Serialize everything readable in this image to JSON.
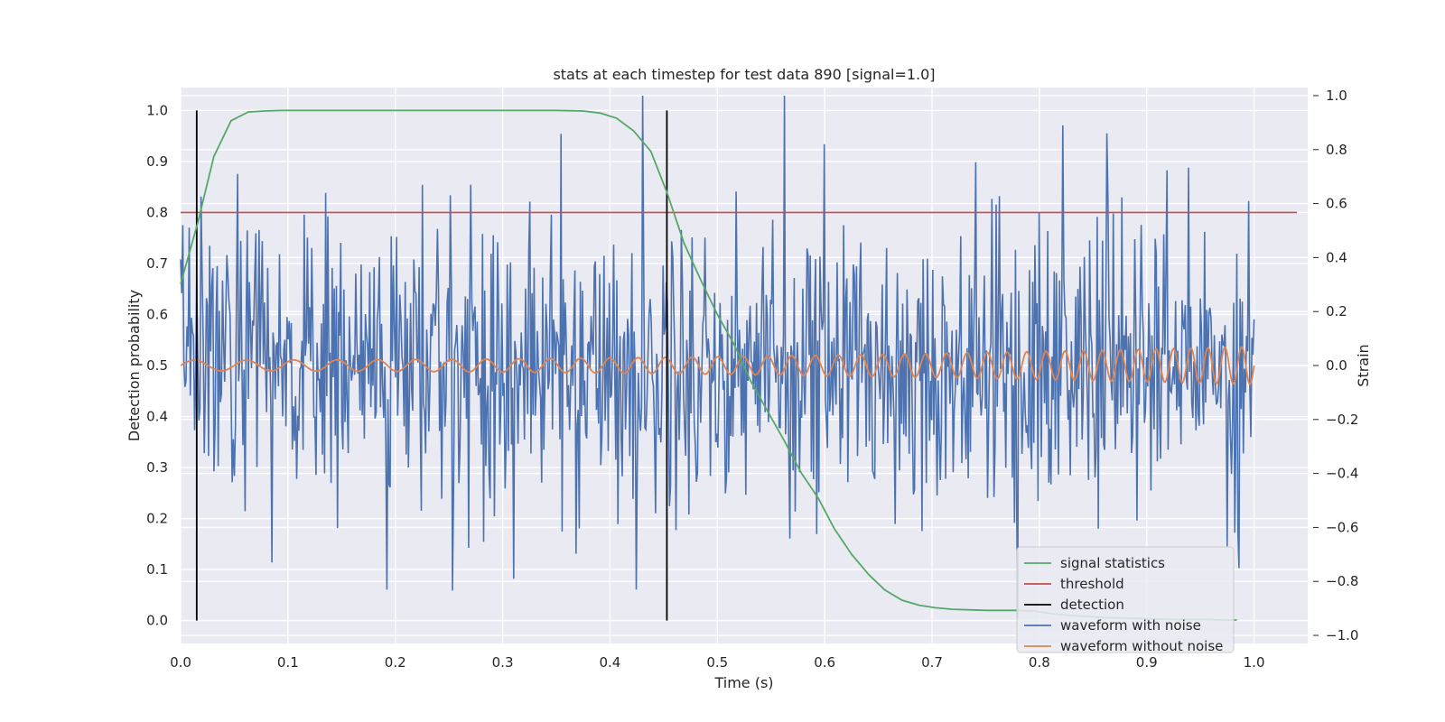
{
  "chart_data": {
    "type": "line",
    "title": "stats at each timestep for test data 890 [signal=1.0]",
    "xlabel": "Time (s)",
    "ylabel_left": "Detection probability",
    "ylabel_right": "Strain",
    "xlim": [
      0.0,
      1.05
    ],
    "ylim_left": [
      -0.045,
      1.045
    ],
    "ylim_right": [
      -1.03,
      1.03
    ],
    "x_ticks": [
      "0.0",
      "0.1",
      "0.2",
      "0.3",
      "0.4",
      "0.5",
      "0.6",
      "0.7",
      "0.8",
      "0.9",
      "1.0"
    ],
    "y_left_ticks": [
      "0.0",
      "0.1",
      "0.2",
      "0.3",
      "0.4",
      "0.5",
      "0.6",
      "0.7",
      "0.8",
      "0.9",
      "1.0"
    ],
    "y_right_ticks": [
      "−1.0",
      "−0.8",
      "−0.6",
      "−0.4",
      "−0.2",
      "0.0",
      "0.2",
      "0.4",
      "0.6",
      "0.8",
      "1.0"
    ],
    "grid": true,
    "legend_position": "lower-right",
    "colors": {
      "background": "#eaeaf2",
      "grid": "#ffffff",
      "signal_statistics": "#55a868",
      "threshold": "#c44e52",
      "detection": "#000000",
      "waveform_with_noise": "#4c72b0",
      "waveform_without_noise": "#dd8452"
    },
    "series": [
      {
        "name": "signal statistics",
        "axis": "left",
        "x": [
          0.0,
          0.016,
          0.031,
          0.047,
          0.063,
          0.078,
          0.094,
          0.109,
          0.125,
          0.15,
          0.2,
          0.25,
          0.3,
          0.35,
          0.375,
          0.391,
          0.406,
          0.422,
          0.438,
          0.453,
          0.469,
          0.484,
          0.5,
          0.516,
          0.531,
          0.547,
          0.563,
          0.578,
          0.594,
          0.609,
          0.625,
          0.641,
          0.656,
          0.672,
          0.688,
          0.703,
          0.719,
          0.734,
          0.75,
          0.766,
          0.781,
          0.797,
          0.813,
          0.828,
          0.844,
          0.859,
          0.875,
          0.891,
          0.906,
          0.922,
          0.938,
          0.953,
          0.969,
          0.984
        ],
        "y": [
          0.66,
          0.78,
          0.91,
          0.98,
          0.997,
          0.999,
          1.0,
          1.0,
          1.0,
          1.0,
          1.0,
          1.0,
          1.0,
          1.0,
          0.999,
          0.995,
          0.985,
          0.96,
          0.92,
          0.84,
          0.74,
          0.67,
          0.6,
          0.54,
          0.47,
          0.41,
          0.35,
          0.29,
          0.24,
          0.18,
          0.13,
          0.09,
          0.06,
          0.04,
          0.03,
          0.025,
          0.022,
          0.021,
          0.02,
          0.02,
          0.02,
          0.018,
          0.013,
          0.01,
          0.008,
          0.006,
          0.005,
          0.004,
          0.003,
          0.002,
          0.002,
          0.002,
          0.001,
          0.001
        ]
      },
      {
        "name": "threshold",
        "axis": "left",
        "x": [
          0.0,
          1.04
        ],
        "y": [
          0.8,
          0.8
        ]
      },
      {
        "name": "detection",
        "axis": "left",
        "x": [
          0.015,
          0.453
        ],
        "ymin": 0.0,
        "ymax": 1.0
      },
      {
        "name": "waveform with noise",
        "axis": "right",
        "x_range": [
          0.0,
          1.0
        ],
        "n_points": 1000,
        "approx_std": 0.27,
        "y_min_observed": -0.94,
        "y_max_observed": 1.0,
        "notable_peaks": [
          {
            "x": 0.002,
            "y": 0.52
          },
          {
            "x": 0.053,
            "y": 0.71
          },
          {
            "x": 0.085,
            "y": -0.73
          },
          {
            "x": 0.192,
            "y": -0.83
          },
          {
            "x": 0.225,
            "y": 0.67
          },
          {
            "x": 0.27,
            "y": 0.67
          },
          {
            "x": 0.31,
            "y": -0.79
          },
          {
            "x": 0.424,
            "y": -0.83
          },
          {
            "x": 0.563,
            "y": 1.0
          },
          {
            "x": 0.6,
            "y": 0.82
          },
          {
            "x": 0.78,
            "y": -0.94
          },
          {
            "x": 0.822,
            "y": 0.89
          },
          {
            "x": 0.863,
            "y": 0.86
          },
          {
            "x": 0.975,
            "y": -0.67
          }
        ]
      },
      {
        "name": "waveform without noise",
        "axis": "right",
        "x_range": [
          0.0,
          1.0
        ],
        "amplitude_start": 0.02,
        "amplitude_end": 0.07,
        "approx_cycles": 42,
        "description_values_in_strain_units": true
      }
    ]
  }
}
